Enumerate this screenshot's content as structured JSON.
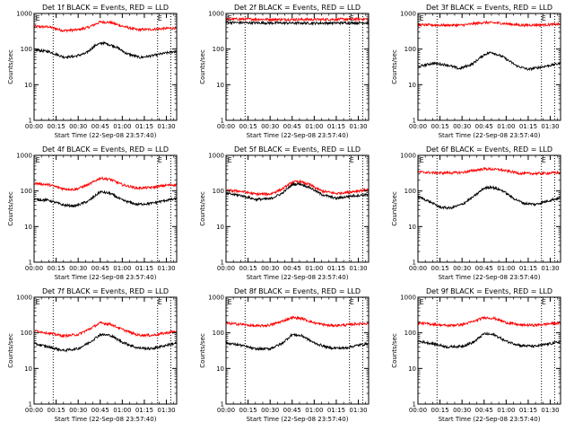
{
  "figure": {
    "xlabel": "Start Time (22-Sep-08 23:57:40)",
    "ylabel": "Counts/sec",
    "x_tick_labels": [
      "00:00",
      "00:15",
      "00:30",
      "00:45",
      "01:00",
      "01:15",
      "01:30"
    ],
    "y_tick_labels": [
      "1",
      "10",
      "100",
      "1000"
    ],
    "marker_letter": "E",
    "colors": {
      "events": "#000000",
      "lld": "#ff0000",
      "axes": "#000000",
      "background": "#ffffff"
    }
  },
  "chart_data": [
    {
      "type": "line",
      "title": "Det 1f BLACK = Events, RED = LLD",
      "xlabel": "Start Time (22-Sep-08 23:57:40)",
      "ylabel": "Counts/sec",
      "xlim": [
        0,
        97
      ],
      "ylim": [
        1,
        1000
      ],
      "y_scale": "log",
      "vlines": [
        13,
        84,
        93
      ],
      "markers": [
        {
          "x": 1,
          "label": "E"
        },
        {
          "x": 84,
          "label": "E"
        }
      ],
      "series": [
        {
          "color": "#ff0000",
          "x": [
            0,
            10,
            20,
            30,
            37,
            45,
            52,
            60,
            70,
            80,
            90,
            97
          ],
          "values": [
            430,
            420,
            330,
            350,
            410,
            580,
            560,
            440,
            350,
            360,
            380,
            390
          ]
        },
        {
          "color": "#000000",
          "x": [
            0,
            10,
            20,
            27,
            35,
            42,
            47,
            55,
            63,
            72,
            80,
            90,
            97
          ],
          "values": [
            95,
            85,
            60,
            62,
            75,
            130,
            150,
            120,
            75,
            58,
            65,
            78,
            88
          ]
        }
      ]
    },
    {
      "type": "line",
      "title": "Det 2f BLACK = Events, RED = LLD",
      "xlabel": "Start Time (22-Sep-08 23:57:40)",
      "ylabel": "Counts/sec",
      "xlim": [
        0,
        97
      ],
      "ylim": [
        1,
        1000
      ],
      "y_scale": "log",
      "vlines": [
        13,
        84,
        93
      ],
      "markers": [
        {
          "x": 1,
          "label": "E"
        },
        {
          "x": 84,
          "label": "E"
        }
      ],
      "series": [
        {
          "color": "#ff0000",
          "x": [
            0,
            20,
            40,
            60,
            80,
            97
          ],
          "values": [
            700,
            690,
            680,
            680,
            690,
            700
          ]
        },
        {
          "color": "#000000",
          "x": [
            0,
            20,
            40,
            60,
            80,
            97
          ],
          "values": [
            560,
            545,
            540,
            535,
            545,
            550
          ]
        }
      ]
    },
    {
      "type": "line",
      "title": "Det 3f BLACK = Events, RED = LLD",
      "xlabel": "Start Time (22-Sep-08 23:57:40)",
      "ylabel": "Counts/sec",
      "xlim": [
        0,
        97
      ],
      "ylim": [
        1,
        1000
      ],
      "y_scale": "log",
      "vlines": [
        13,
        84,
        93
      ],
      "markers": [
        {
          "x": 1,
          "label": "E"
        },
        {
          "x": 84,
          "label": "E"
        }
      ],
      "series": [
        {
          "color": "#ff0000",
          "x": [
            0,
            15,
            30,
            45,
            55,
            70,
            85,
            97
          ],
          "values": [
            480,
            470,
            470,
            560,
            540,
            470,
            480,
            500
          ]
        },
        {
          "color": "#000000",
          "x": [
            0,
            10,
            20,
            28,
            37,
            45,
            50,
            58,
            67,
            75,
            85,
            97
          ],
          "values": [
            32,
            40,
            36,
            28,
            38,
            70,
            82,
            60,
            34,
            27,
            32,
            40
          ]
        }
      ]
    },
    {
      "type": "line",
      "title": "Det 4f BLACK = Events, RED = LLD",
      "xlabel": "Start Time (22-Sep-08 23:57:40)",
      "ylabel": "Counts/sec",
      "xlim": [
        0,
        97
      ],
      "ylim": [
        1,
        1000
      ],
      "y_scale": "log",
      "vlines": [
        13,
        84,
        93
      ],
      "markers": [
        {
          "x": 1,
          "label": "E"
        },
        {
          "x": 84,
          "label": "E"
        }
      ],
      "series": [
        {
          "color": "#ff0000",
          "x": [
            0,
            10,
            20,
            28,
            37,
            45,
            52,
            60,
            70,
            80,
            90,
            97
          ],
          "values": [
            165,
            150,
            115,
            110,
            150,
            230,
            210,
            150,
            120,
            125,
            145,
            150
          ]
        },
        {
          "color": "#000000",
          "x": [
            0,
            10,
            20,
            28,
            37,
            45,
            52,
            60,
            70,
            80,
            90,
            97
          ],
          "values": [
            58,
            55,
            40,
            38,
            52,
            95,
            85,
            55,
            42,
            45,
            55,
            60
          ]
        }
      ]
    },
    {
      "type": "line",
      "title": "Det 5f BLACK = Events, RED = LLD",
      "xlabel": "Start Time (22-Sep-08 23:57:40)",
      "ylabel": "Counts/sec",
      "xlim": [
        0,
        97
      ],
      "ylim": [
        1,
        1000
      ],
      "y_scale": "log",
      "vlines": [
        13,
        84,
        93
      ],
      "markers": [
        {
          "x": 1,
          "label": "E"
        },
        {
          "x": 84,
          "label": "E"
        }
      ],
      "series": [
        {
          "color": "#ff0000",
          "x": [
            0,
            10,
            20,
            30,
            38,
            45,
            50,
            57,
            65,
            75,
            85,
            97
          ],
          "values": [
            105,
            98,
            82,
            82,
            112,
            175,
            185,
            150,
            100,
            85,
            95,
            110
          ]
        },
        {
          "color": "#000000",
          "x": [
            0,
            10,
            20,
            30,
            38,
            45,
            50,
            57,
            65,
            75,
            85,
            97
          ],
          "values": [
            85,
            75,
            58,
            60,
            85,
            150,
            160,
            125,
            80,
            62,
            72,
            80
          ]
        }
      ]
    },
    {
      "type": "line",
      "title": "Det 6f BLACK = Events, RED = LLD",
      "xlabel": "Start Time (22-Sep-08 23:57:40)",
      "ylabel": "Counts/sec",
      "xlim": [
        0,
        97
      ],
      "ylim": [
        1,
        1000
      ],
      "y_scale": "log",
      "vlines": [
        13,
        84,
        93
      ],
      "markers": [
        {
          "x": 1,
          "label": "E"
        },
        {
          "x": 84,
          "label": "E"
        }
      ],
      "series": [
        {
          "color": "#ff0000",
          "x": [
            0,
            15,
            30,
            45,
            55,
            70,
            85,
            97
          ],
          "values": [
            340,
            320,
            330,
            420,
            400,
            310,
            310,
            330
          ]
        },
        {
          "color": "#000000",
          "x": [
            0,
            8,
            15,
            22,
            30,
            38,
            45,
            50,
            58,
            65,
            72,
            80,
            90,
            97
          ],
          "values": [
            70,
            50,
            35,
            33,
            42,
            70,
            120,
            130,
            100,
            62,
            45,
            42,
            55,
            65
          ]
        }
      ]
    },
    {
      "type": "line",
      "title": "Det 7f BLACK = Events, RED = LLD",
      "xlabel": "Start Time (22-Sep-08 23:57:40)",
      "ylabel": "Counts/sec",
      "xlim": [
        0,
        97
      ],
      "ylim": [
        1,
        1000
      ],
      "y_scale": "log",
      "vlines": [
        13,
        84,
        93
      ],
      "markers": [
        {
          "x": 1,
          "label": "E"
        },
        {
          "x": 84,
          "label": "E"
        }
      ],
      "series": [
        {
          "color": "#ff0000",
          "x": [
            0,
            10,
            20,
            30,
            38,
            45,
            52,
            60,
            70,
            80,
            90,
            97
          ],
          "values": [
            115,
            98,
            82,
            90,
            130,
            190,
            175,
            125,
            88,
            85,
            100,
            110
          ]
        },
        {
          "color": "#000000",
          "x": [
            0,
            10,
            20,
            30,
            38,
            45,
            52,
            60,
            70,
            80,
            90,
            97
          ],
          "values": [
            50,
            40,
            32,
            36,
            55,
            90,
            85,
            55,
            38,
            36,
            45,
            52
          ]
        }
      ]
    },
    {
      "type": "line",
      "title": "Det 8f BLACK = Events, RED = LLD",
      "xlabel": "Start Time (22-Sep-08 23:57:40)",
      "ylabel": "Counts/sec",
      "xlim": [
        0,
        97
      ],
      "ylim": [
        1,
        1000
      ],
      "y_scale": "log",
      "vlines": [
        13,
        84,
        93
      ],
      "markers": [
        {
          "x": 1,
          "label": "E"
        },
        {
          "x": 84,
          "label": "E"
        }
      ],
      "series": [
        {
          "color": "#ff0000",
          "x": [
            0,
            10,
            20,
            30,
            38,
            45,
            52,
            60,
            70,
            80,
            90,
            97
          ],
          "values": [
            185,
            175,
            155,
            165,
            210,
            270,
            250,
            190,
            160,
            165,
            180,
            185
          ]
        },
        {
          "color": "#000000",
          "x": [
            0,
            10,
            20,
            30,
            38,
            45,
            52,
            60,
            70,
            80,
            90,
            97
          ],
          "values": [
            52,
            45,
            35,
            36,
            50,
            90,
            82,
            52,
            38,
            37,
            45,
            50
          ]
        }
      ]
    },
    {
      "type": "line",
      "title": "Det 9f BLACK = Events, RED = LLD",
      "xlabel": "Start Time (22-Sep-08 23:57:40)",
      "ylabel": "Counts/sec",
      "xlim": [
        0,
        97
      ],
      "ylim": [
        1,
        1000
      ],
      "y_scale": "log",
      "vlines": [
        13,
        84,
        93
      ],
      "markers": [
        {
          "x": 1,
          "label": "E"
        },
        {
          "x": 84,
          "label": "E"
        }
      ],
      "series": [
        {
          "color": "#ff0000",
          "x": [
            0,
            10,
            20,
            30,
            38,
            45,
            52,
            60,
            70,
            80,
            90,
            97
          ],
          "values": [
            190,
            175,
            160,
            170,
            210,
            270,
            255,
            195,
            165,
            165,
            180,
            190
          ]
        },
        {
          "color": "#000000",
          "x": [
            0,
            10,
            20,
            30,
            38,
            45,
            52,
            60,
            70,
            80,
            90,
            97
          ],
          "values": [
            58,
            50,
            40,
            42,
            55,
            95,
            88,
            58,
            44,
            42,
            50,
            56
          ]
        }
      ]
    }
  ]
}
